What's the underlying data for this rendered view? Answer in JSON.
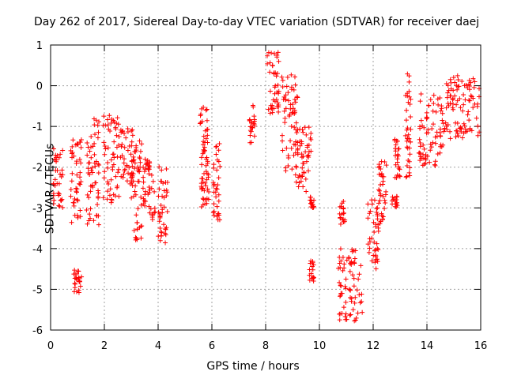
{
  "chart_data": {
    "type": "scatter",
    "title": "Day 262 of 2017, Sidereal Day-to-day VTEC variation (SDTVAR) for receiver daej",
    "xlabel": "GPS time / hours",
    "ylabel": "SDTVAR / TECUs",
    "xlim": [
      0,
      16
    ],
    "ylim": [
      -6,
      1
    ],
    "xticks": [
      0,
      2,
      4,
      6,
      8,
      10,
      12,
      14,
      16
    ],
    "yticks": [
      -6,
      -5,
      -4,
      -3,
      -2,
      -1,
      0,
      1
    ],
    "grid": true,
    "marker": "+",
    "color": "#ff0000",
    "clusters": [
      {
        "x": [
          0.1,
          0.45
        ],
        "y": [
          -3.0,
          -1.5
        ]
      },
      {
        "x": [
          0.75,
          1.15
        ],
        "y": [
          -3.4,
          -1.3
        ]
      },
      {
        "x": [
          0.85,
          1.15
        ],
        "y": [
          -5.1,
          -4.5
        ]
      },
      {
        "x": [
          1.3,
          1.8
        ],
        "y": [
          -3.5,
          -0.8
        ]
      },
      {
        "x": [
          1.95,
          2.55
        ],
        "y": [
          -2.9,
          -0.7
        ]
      },
      {
        "x": [
          2.6,
          3.1
        ],
        "y": [
          -2.5,
          -1.0
        ]
      },
      {
        "x": [
          3.0,
          3.4
        ],
        "y": [
          -3.8,
          -1.3
        ]
      },
      {
        "x": [
          3.4,
          3.9
        ],
        "y": [
          -3.3,
          -1.8
        ]
      },
      {
        "x": [
          4.0,
          4.35
        ],
        "y": [
          -3.9,
          -1.9
        ]
      },
      {
        "x": [
          5.55,
          5.85
        ],
        "y": [
          -2.0,
          -0.5
        ]
      },
      {
        "x": [
          5.6,
          5.9
        ],
        "y": [
          -3.0,
          -2.0
        ]
      },
      {
        "x": [
          6.05,
          6.3
        ],
        "y": [
          -3.3,
          -1.4
        ]
      },
      {
        "x": [
          7.4,
          7.6
        ],
        "y": [
          -1.4,
          -0.4
        ]
      },
      {
        "x": [
          8.05,
          8.5
        ],
        "y": [
          -0.7,
          0.85
        ]
      },
      {
        "x": [
          8.6,
          9.2
        ],
        "y": [
          -2.2,
          0.3
        ]
      },
      {
        "x": [
          9.1,
          9.7
        ],
        "y": [
          -2.6,
          -1.0
        ]
      },
      {
        "x": [
          9.6,
          9.8
        ],
        "y": [
          -4.8,
          -4.3
        ]
      },
      {
        "x": [
          9.65,
          9.8
        ],
        "y": [
          -3.0,
          -2.7
        ]
      },
      {
        "x": [
          10.7,
          11.6
        ],
        "y": [
          -5.8,
          -4.0
        ]
      },
      {
        "x": [
          10.75,
          10.95
        ],
        "y": [
          -3.4,
          -2.8
        ]
      },
      {
        "x": [
          11.8,
          12.2
        ],
        "y": [
          -4.5,
          -2.8
        ]
      },
      {
        "x": [
          12.2,
          12.5
        ],
        "y": [
          -3.4,
          -1.7
        ]
      },
      {
        "x": [
          12.7,
          12.9
        ],
        "y": [
          -3.0,
          -2.7
        ]
      },
      {
        "x": [
          12.8,
          13.0
        ],
        "y": [
          -2.3,
          -1.2
        ]
      },
      {
        "x": [
          13.2,
          13.4
        ],
        "y": [
          -2.3,
          0.3
        ]
      },
      {
        "x": [
          13.7,
          14.7
        ],
        "y": [
          -2.0,
          -0.2
        ]
      },
      {
        "x": [
          14.7,
          16.0
        ],
        "y": [
          -1.3,
          0.25
        ]
      }
    ]
  }
}
